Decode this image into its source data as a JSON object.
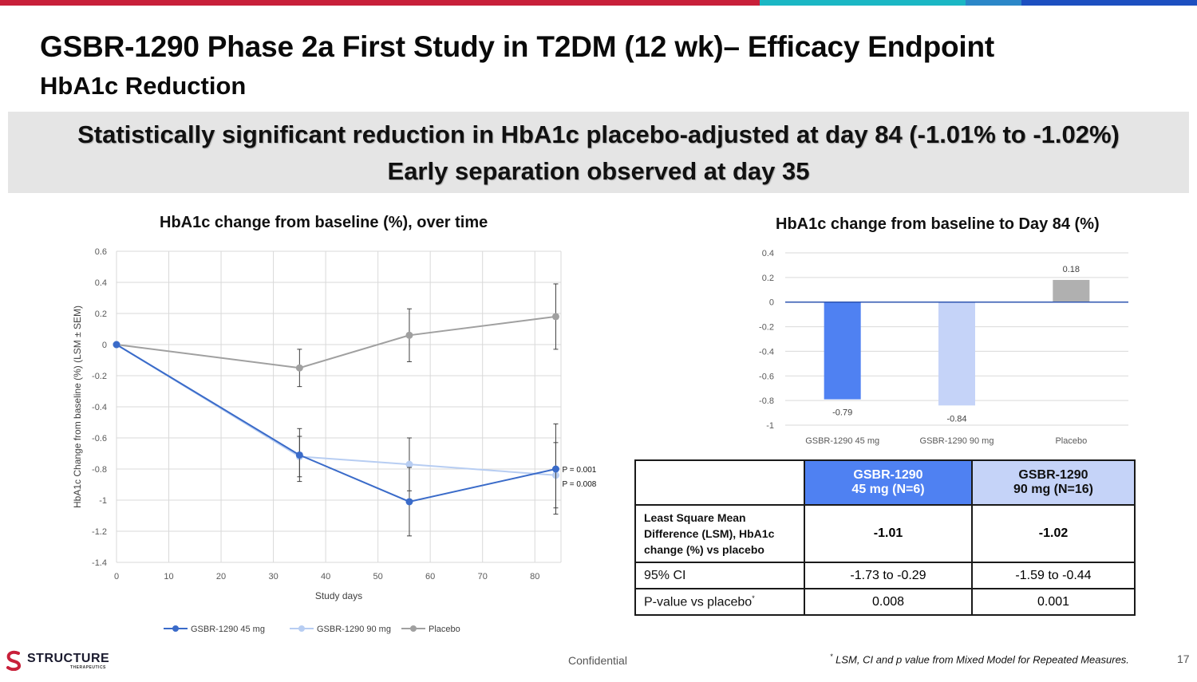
{
  "header": {
    "title": "GSBR-1290 Phase 2a First Study in T2DM (12 wk)– Efficacy Endpoint",
    "subtitle": "HbA1c Reduction"
  },
  "banner": {
    "line1": "Statistically significant reduction in HbA1c placebo-adjusted at day 84 (-1.01% to -1.02%)",
    "line2": "Early separation observed at day 35"
  },
  "colors": {
    "brand_red": "#c8203a",
    "brand_teal": "#1bb7c4",
    "brand_blue": "#1d5fc9",
    "series_45": "#3a6bc9",
    "series_90": "#b7cdf2",
    "series_placebo": "#a0a0a0",
    "bar_45": "#4f81f2",
    "bar_90": "#c5d3f8",
    "bar_placebo": "#b0b0b0"
  },
  "chart_data": [
    {
      "type": "line",
      "title": "HbA1c change from baseline (%), over time",
      "xlabel": "Study days",
      "ylabel": "HbA1c Change from baseline (%) (LSM ± SEM)",
      "xlim": [
        0,
        85
      ],
      "ylim": [
        -1.4,
        0.6
      ],
      "xticks": [
        0,
        10,
        20,
        30,
        40,
        50,
        60,
        70,
        80
      ],
      "yticks": [
        0.6,
        0.4,
        0.2,
        0,
        -0.2,
        -0.4,
        -0.6,
        -0.8,
        -1,
        -1.2,
        -1.4
      ],
      "grid": true,
      "legend": "bottom",
      "series": [
        {
          "name": "GSBR-1290 45 mg",
          "x": [
            0,
            35,
            56,
            84
          ],
          "y": [
            0,
            -0.71,
            -1.01,
            -0.8
          ],
          "err": [
            0,
            0.17,
            0.22,
            0.29
          ]
        },
        {
          "name": "GSBR-1290 90 mg",
          "x": [
            0,
            35,
            56,
            84
          ],
          "y": [
            0,
            -0.72,
            -0.77,
            -0.84
          ],
          "err": [
            0,
            0.13,
            0.17,
            0.21
          ]
        },
        {
          "name": "Placebo",
          "x": [
            0,
            35,
            56,
            84
          ],
          "y": [
            0,
            -0.15,
            0.06,
            0.18
          ],
          "err": [
            0,
            0.12,
            0.17,
            0.21
          ]
        }
      ],
      "annotations": [
        "P = 0.001",
        "P = 0.008"
      ]
    },
    {
      "type": "bar",
      "title": "HbA1c change from baseline to Day 84 (%)",
      "categories": [
        "GSBR-1290 45 mg",
        "GSBR-1290 90 mg",
        "Placebo"
      ],
      "values": [
        -0.79,
        -0.84,
        0.18
      ],
      "value_labels": [
        "-0.79",
        "-0.84",
        "0.18"
      ],
      "ylim": [
        -1,
        0.4
      ],
      "yticks": [
        0.4,
        0.2,
        0,
        -0.2,
        -0.4,
        -0.6,
        -0.8,
        -1
      ],
      "grid": true,
      "xlabel": "",
      "ylabel": ""
    }
  ],
  "table": {
    "col1_line1": "GSBR-1290",
    "col1_line2": "45 mg  (N=6)",
    "col2_line1": "GSBR-1290",
    "col2_line2": "90 mg (N=16)",
    "rows": [
      {
        "label_line1": "Least Square Mean",
        "label_line2": "Difference (LSM), HbA1c",
        "label_line3": "change (%) vs placebo",
        "v1": "-1.01",
        "v2": "-1.02"
      },
      {
        "label": "95% CI",
        "v1": "-1.73 to -0.29",
        "v2": "-1.59 to -0.44"
      },
      {
        "label": "P-value vs placebo",
        "label_sup": "*",
        "v1": "0.008",
        "v2": "0.001"
      }
    ]
  },
  "footer": {
    "logo_main": "STRUCTURE",
    "logo_sub": "THERAPEUTICS",
    "confidential": "Confidential",
    "footnote_mark": "*",
    "footnote": " LSM, CI and p value from Mixed Model for Repeated Measures.",
    "page": "17"
  }
}
